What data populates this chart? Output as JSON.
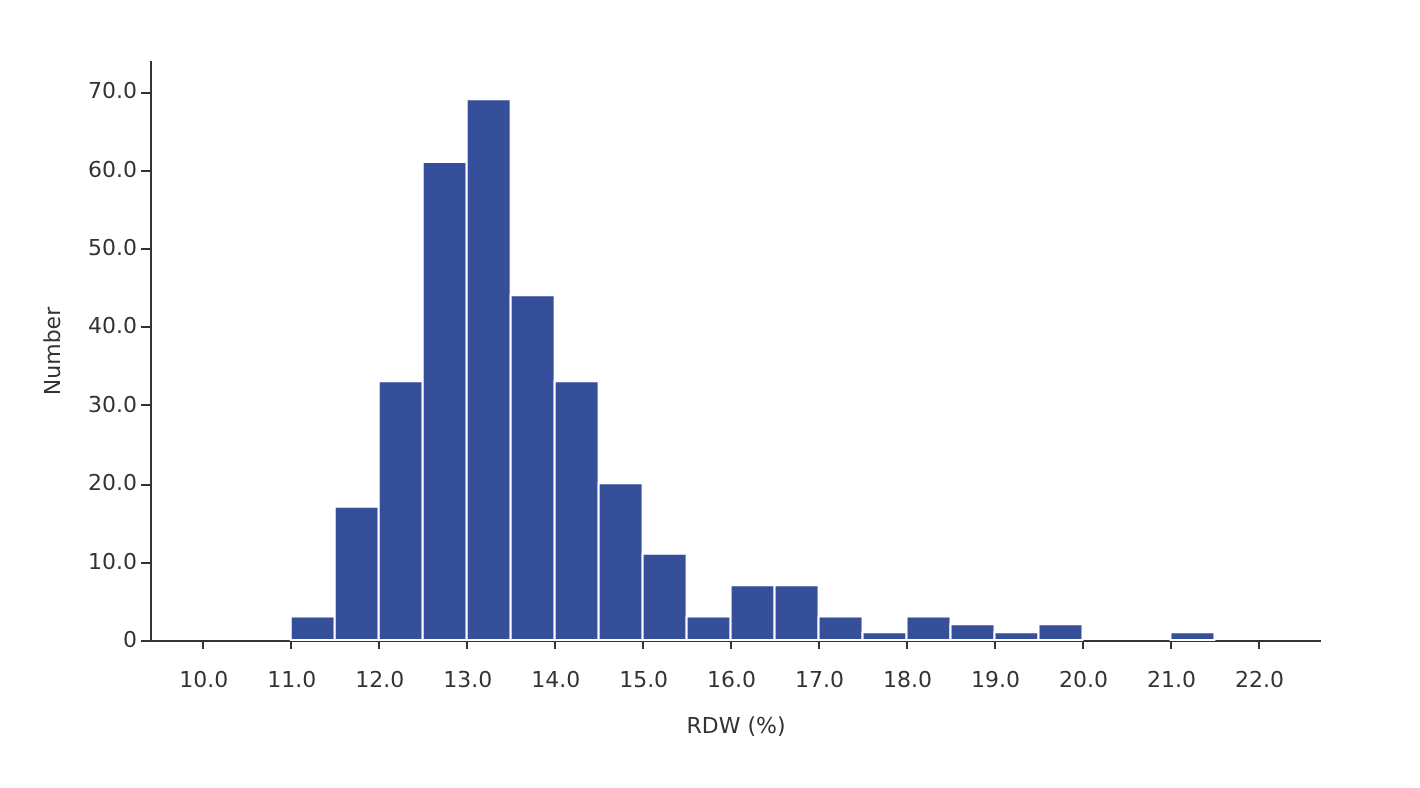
{
  "chart_data": {
    "type": "histogram",
    "xlabel": "RDW (%)",
    "ylabel": "Number",
    "bins": [
      11.0,
      11.5,
      12.0,
      12.5,
      13.0,
      13.5,
      14.0,
      14.5,
      15.0,
      15.5,
      16.0,
      16.5,
      17.0,
      17.5,
      18.0,
      18.5,
      19.0,
      19.5,
      20.0,
      20.5,
      21.0,
      21.5
    ],
    "values": [
      3,
      17,
      33,
      61,
      69,
      44,
      33,
      20,
      11,
      3,
      7,
      7,
      3,
      1,
      3,
      2,
      1,
      2,
      0,
      0,
      1
    ],
    "color": "#364f9b",
    "xlim": [
      9.4,
      22.7
    ],
    "xticks": [
      {
        "value": 10,
        "label": "10.0"
      },
      {
        "value": 11,
        "label": "11.0"
      },
      {
        "value": 12,
        "label": "12.0"
      },
      {
        "value": 13,
        "label": "13.0"
      },
      {
        "value": 14,
        "label": "14.0"
      },
      {
        "value": 15,
        "label": "15.0"
      },
      {
        "value": 16,
        "label": "16.0"
      },
      {
        "value": 17,
        "label": "17.0"
      },
      {
        "value": 18,
        "label": "18.0"
      },
      {
        "value": 19,
        "label": "19.0"
      },
      {
        "value": 20,
        "label": "20.0"
      },
      {
        "value": 21,
        "label": "21.0"
      },
      {
        "value": 22,
        "label": "22.0"
      }
    ],
    "ylim": [
      0,
      74
    ],
    "yticks": [
      0,
      {
        "value": 10,
        "label": "10.0"
      },
      {
        "value": 20,
        "label": "20.0"
      },
      {
        "value": 30,
        "label": "30.0"
      },
      {
        "value": 40,
        "label": "40.0"
      },
      {
        "value": 50,
        "label": "50.0"
      },
      {
        "value": 60,
        "label": "60.0"
      },
      {
        "value": 70,
        "label": "70.0"
      }
    ],
    "grid": false
  }
}
